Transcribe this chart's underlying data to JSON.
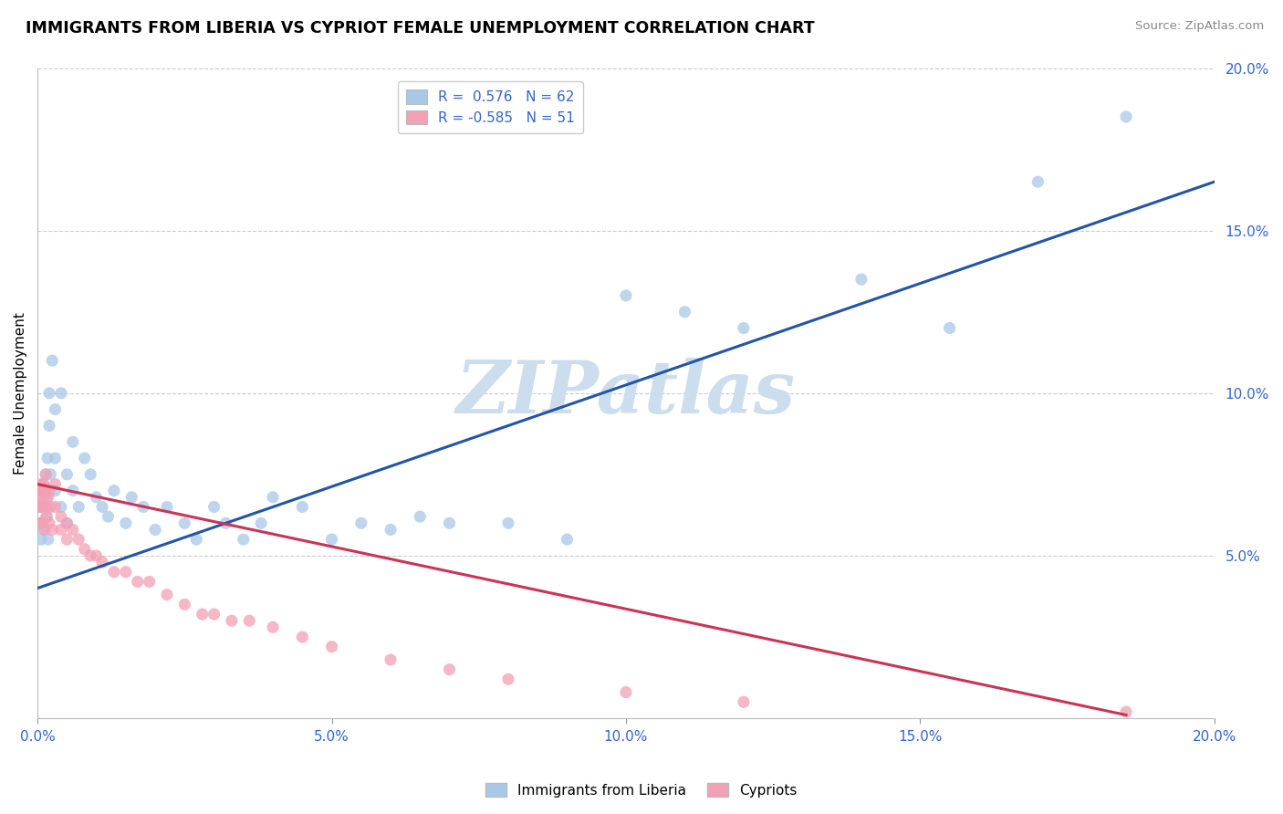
{
  "title": "IMMIGRANTS FROM LIBERIA VS CYPRIOT FEMALE UNEMPLOYMENT CORRELATION CHART",
  "source": "Source: ZipAtlas.com",
  "ylabel": "Female Unemployment",
  "xlim": [
    0.0,
    0.2
  ],
  "ylim": [
    0.0,
    0.2
  ],
  "xticks": [
    0.0,
    0.05,
    0.1,
    0.15,
    0.2
  ],
  "yticks": [
    0.05,
    0.1,
    0.15,
    0.2
  ],
  "blue_R": 0.576,
  "blue_N": 62,
  "pink_R": -0.585,
  "pink_N": 51,
  "blue_color": "#a8c8e8",
  "pink_color": "#f4a0b5",
  "blue_line_color": "#2255aa",
  "pink_line_color": "#cc3355",
  "watermark": "ZIPatlas",
  "watermark_color": "#ccdded",
  "legend_label_blue": "Immigrants from Liberia",
  "legend_label_pink": "Cypriots",
  "blue_x": [
    0.0003,
    0.0005,
    0.0006,
    0.0007,
    0.0008,
    0.0009,
    0.001,
    0.001,
    0.0012,
    0.0013,
    0.0014,
    0.0015,
    0.0016,
    0.0017,
    0.0018,
    0.002,
    0.002,
    0.0022,
    0.0025,
    0.003,
    0.003,
    0.003,
    0.004,
    0.004,
    0.005,
    0.005,
    0.006,
    0.006,
    0.007,
    0.008,
    0.009,
    0.01,
    0.011,
    0.012,
    0.013,
    0.015,
    0.016,
    0.018,
    0.02,
    0.022,
    0.025,
    0.027,
    0.03,
    0.032,
    0.035,
    0.038,
    0.04,
    0.045,
    0.05,
    0.055,
    0.06,
    0.065,
    0.07,
    0.08,
    0.09,
    0.1,
    0.11,
    0.12,
    0.14,
    0.155,
    0.17,
    0.185
  ],
  "blue_y": [
    0.06,
    0.065,
    0.055,
    0.07,
    0.06,
    0.065,
    0.058,
    0.072,
    0.065,
    0.07,
    0.075,
    0.068,
    0.062,
    0.08,
    0.055,
    0.09,
    0.1,
    0.075,
    0.11,
    0.095,
    0.08,
    0.07,
    0.1,
    0.065,
    0.075,
    0.06,
    0.085,
    0.07,
    0.065,
    0.08,
    0.075,
    0.068,
    0.065,
    0.062,
    0.07,
    0.06,
    0.068,
    0.065,
    0.058,
    0.065,
    0.06,
    0.055,
    0.065,
    0.06,
    0.055,
    0.06,
    0.068,
    0.065,
    0.055,
    0.06,
    0.058,
    0.062,
    0.06,
    0.06,
    0.055,
    0.13,
    0.125,
    0.12,
    0.135,
    0.12,
    0.165,
    0.185
  ],
  "pink_x": [
    0.0002,
    0.0003,
    0.0004,
    0.0005,
    0.0006,
    0.0007,
    0.0008,
    0.0009,
    0.001,
    0.001,
    0.0012,
    0.0013,
    0.0014,
    0.0015,
    0.0016,
    0.0018,
    0.002,
    0.002,
    0.0022,
    0.0025,
    0.003,
    0.003,
    0.004,
    0.004,
    0.005,
    0.005,
    0.006,
    0.007,
    0.008,
    0.009,
    0.01,
    0.011,
    0.013,
    0.015,
    0.017,
    0.019,
    0.022,
    0.025,
    0.028,
    0.03,
    0.033,
    0.036,
    0.04,
    0.045,
    0.05,
    0.06,
    0.07,
    0.08,
    0.1,
    0.12,
    0.185
  ],
  "pink_y": [
    0.065,
    0.068,
    0.06,
    0.072,
    0.065,
    0.07,
    0.06,
    0.068,
    0.065,
    0.072,
    0.058,
    0.07,
    0.075,
    0.062,
    0.065,
    0.068,
    0.06,
    0.07,
    0.065,
    0.058,
    0.065,
    0.072,
    0.062,
    0.058,
    0.06,
    0.055,
    0.058,
    0.055,
    0.052,
    0.05,
    0.05,
    0.048,
    0.045,
    0.045,
    0.042,
    0.042,
    0.038,
    0.035,
    0.032,
    0.032,
    0.03,
    0.03,
    0.028,
    0.025,
    0.022,
    0.018,
    0.015,
    0.012,
    0.008,
    0.005,
    0.002
  ],
  "blue_trend": [
    0.0,
    0.2,
    0.04,
    0.165
  ],
  "pink_trend": [
    0.0,
    0.185,
    0.072,
    0.001
  ]
}
